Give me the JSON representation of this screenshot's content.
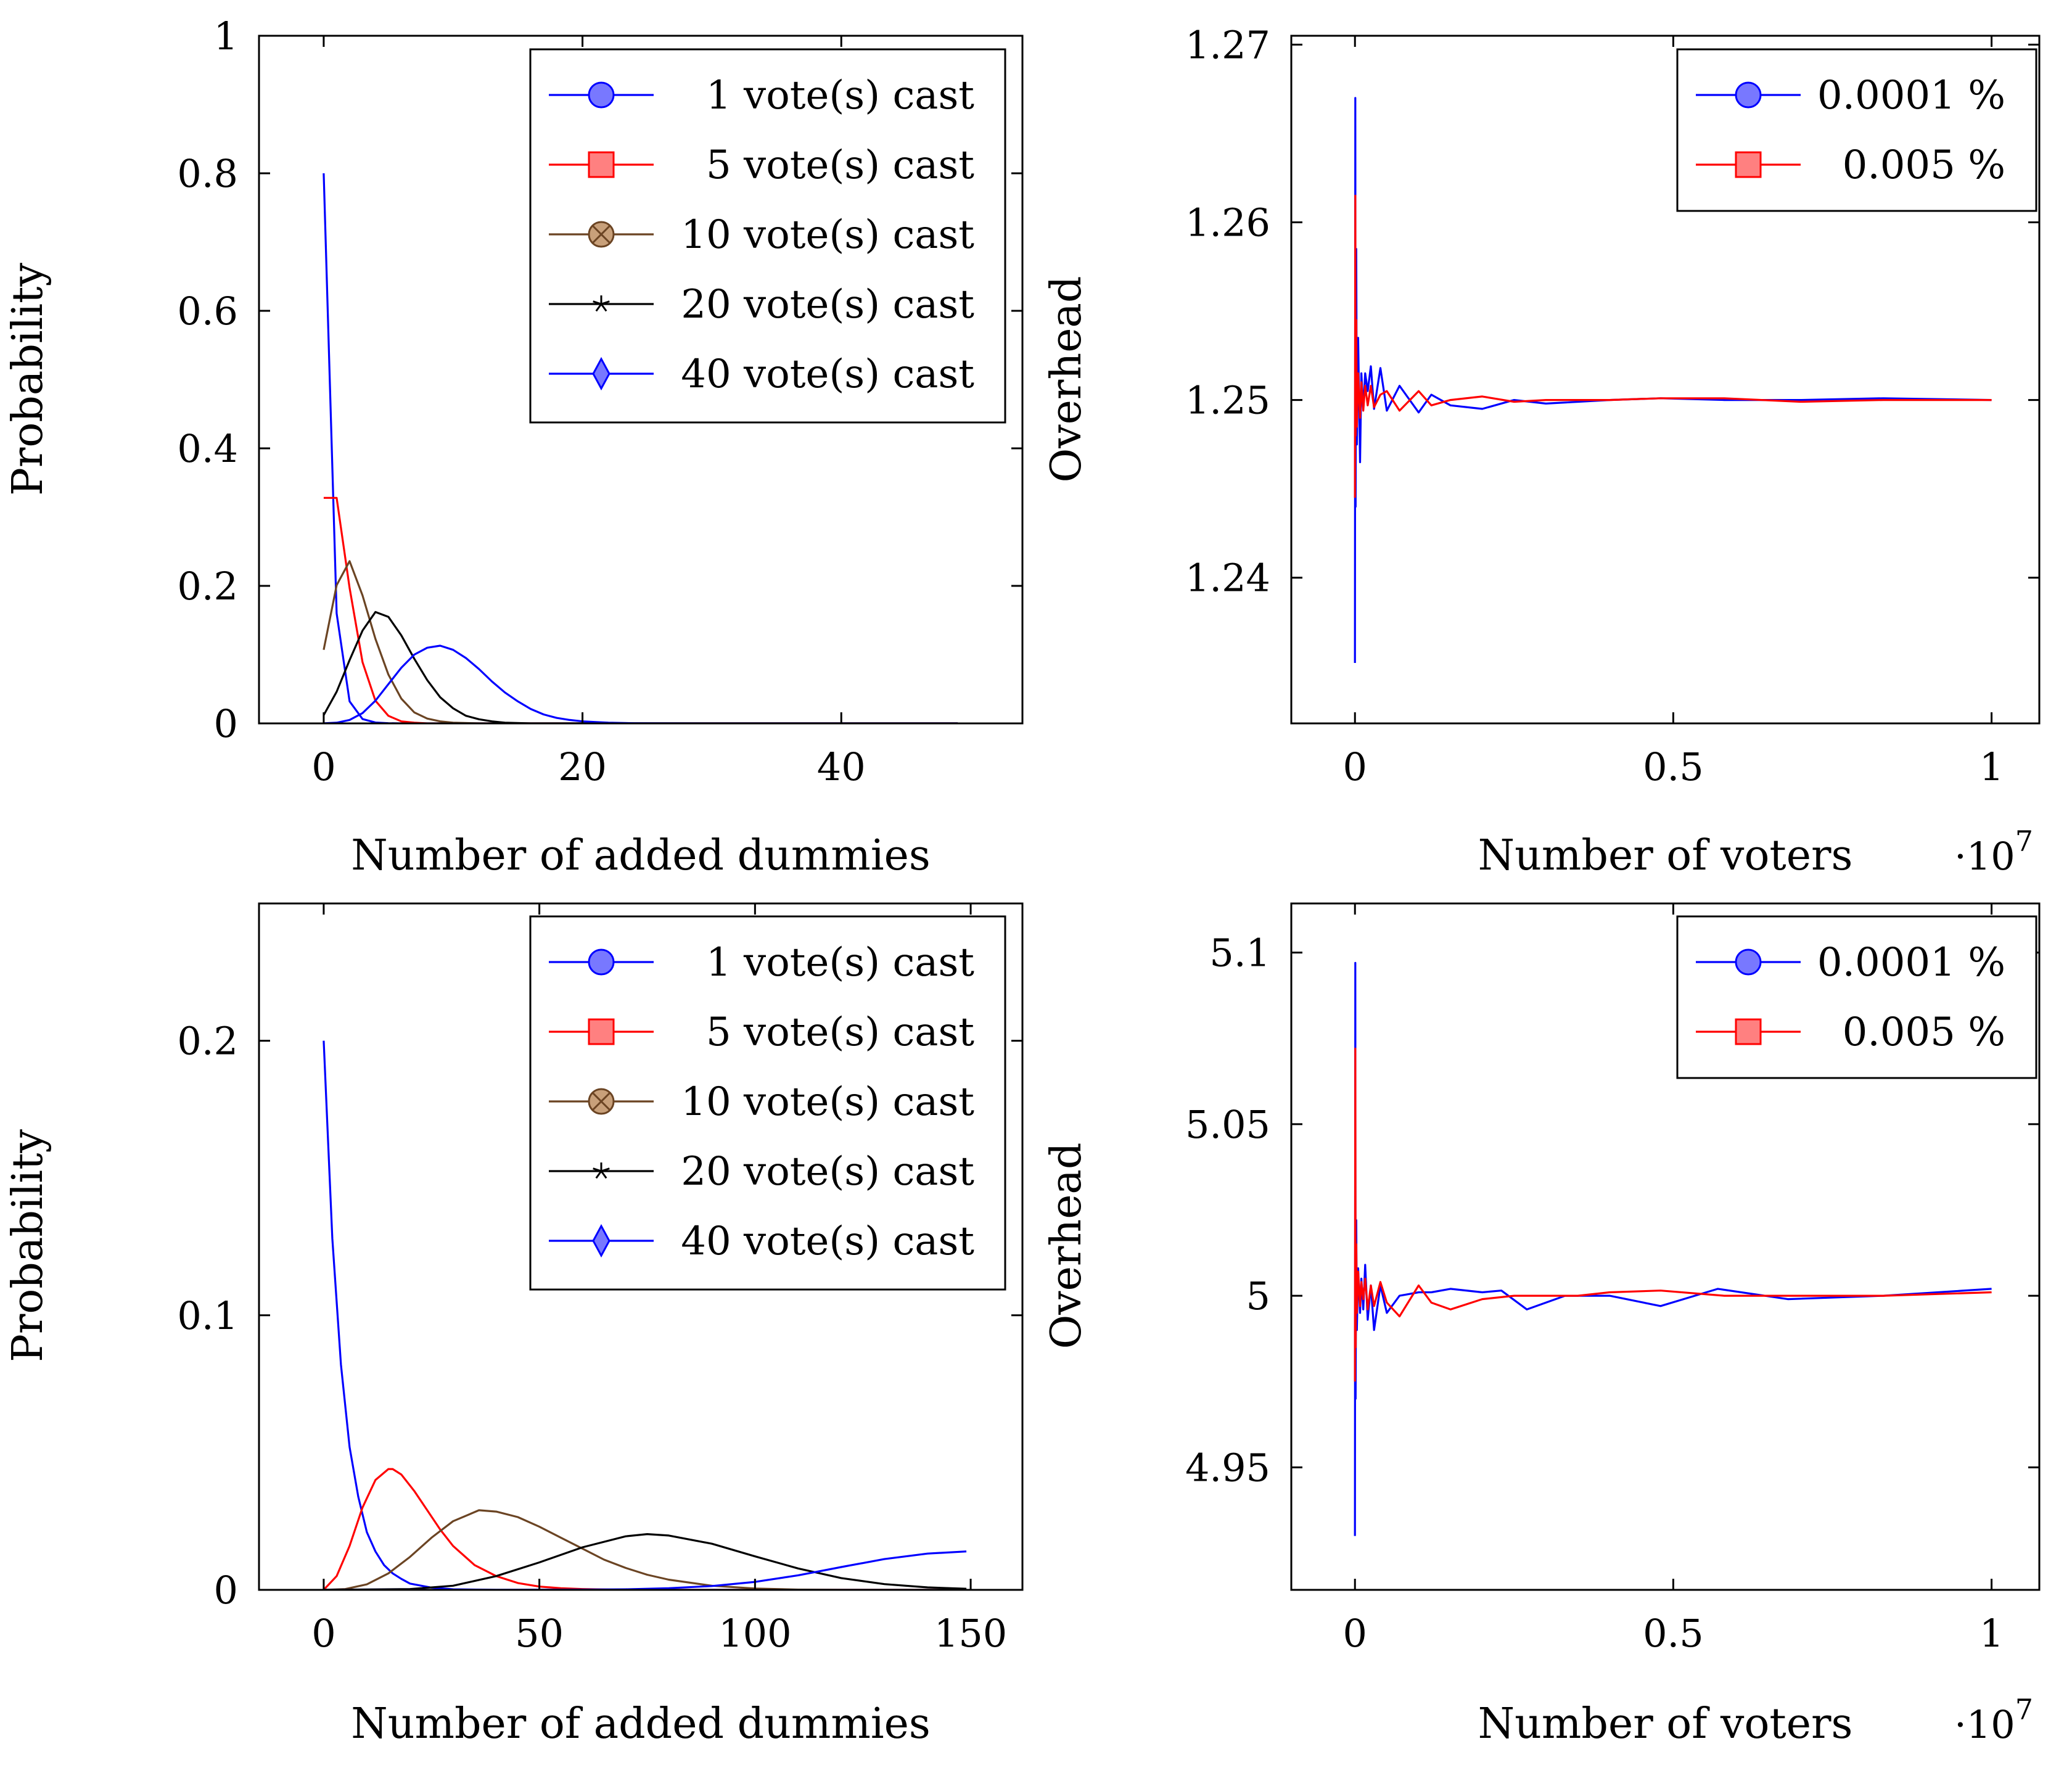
{
  "colors": {
    "blue": "#0000ff",
    "red": "#ff0000",
    "brown": "#6b4423",
    "black": "#000000",
    "blue_fill": "#7878ff",
    "red_fill": "#ff8080",
    "brown_fill": "#c8a07a"
  },
  "chart_data": [
    {
      "type": "line",
      "title": "",
      "xlabel": "Number of added dummies",
      "ylabel": "Probability",
      "xlim": [
        -5,
        54
      ],
      "ylim": [
        0,
        1
      ],
      "xticks": [
        0,
        20,
        40
      ],
      "xtick_labels": [
        "0",
        "20",
        "40"
      ],
      "yticks": [
        0,
        0.2,
        0.4,
        0.6,
        0.8,
        1
      ],
      "ytick_labels": [
        "0",
        "0.2",
        "0.4",
        "0.6",
        "0.8",
        "1"
      ],
      "grid": false,
      "legend_position": "top-right",
      "series": [
        {
          "name": "1 vote(s) cast",
          "color": "blue",
          "marker": "circle",
          "x": [
            0,
            1,
            2,
            3,
            4,
            5,
            6,
            7,
            8,
            10,
            15,
            20,
            30,
            40,
            49
          ],
          "y": [
            0.8,
            0.16,
            0.032,
            0.0064,
            0.0013,
            0.0003,
            0,
            0,
            0,
            0,
            0,
            0,
            0,
            0,
            0
          ]
        },
        {
          "name": "5 vote(s) cast",
          "color": "red",
          "marker": "square",
          "x": [
            0,
            1,
            2,
            3,
            4,
            5,
            6,
            7,
            8,
            10,
            15,
            20,
            30,
            40,
            49
          ],
          "y": [
            0.328,
            0.328,
            0.197,
            0.089,
            0.033,
            0.011,
            0.003,
            0.001,
            0,
            0,
            0,
            0,
            0,
            0,
            0
          ]
        },
        {
          "name": "10 vote(s) cast",
          "color": "brown",
          "marker": "circle-x",
          "x": [
            0,
            1,
            2,
            3,
            4,
            5,
            6,
            7,
            8,
            9,
            10,
            12,
            15,
            20,
            30,
            40,
            49
          ],
          "y": [
            0.107,
            0.201,
            0.236,
            0.186,
            0.123,
            0.071,
            0.036,
            0.016,
            0.007,
            0.003,
            0.001,
            0,
            0,
            0,
            0,
            0,
            0
          ]
        },
        {
          "name": "20 vote(s) cast",
          "color": "black",
          "marker": "star",
          "x": [
            0,
            1,
            2,
            3,
            4,
            5,
            6,
            7,
            8,
            9,
            10,
            11,
            12,
            13,
            14,
            16,
            18,
            20,
            30,
            40,
            49
          ],
          "y": [
            0.012,
            0.046,
            0.092,
            0.135,
            0.162,
            0.155,
            0.128,
            0.094,
            0.063,
            0.038,
            0.022,
            0.011,
            0.006,
            0.003,
            0.001,
            0,
            0,
            0,
            0,
            0,
            0
          ]
        },
        {
          "name": "40 vote(s) cast",
          "color": "blue",
          "marker": "diamond",
          "x": [
            0,
            1,
            2,
            3,
            4,
            5,
            6,
            7,
            8,
            9,
            10,
            11,
            12,
            13,
            14,
            15,
            16,
            17,
            18,
            19,
            20,
            22,
            24,
            26,
            30,
            40,
            49
          ],
          "y": [
            0.0001,
            0.001,
            0.005,
            0.015,
            0.033,
            0.057,
            0.081,
            0.1,
            0.11,
            0.113,
            0.107,
            0.095,
            0.079,
            0.061,
            0.045,
            0.032,
            0.021,
            0.013,
            0.008,
            0.005,
            0.003,
            0.001,
            0.0003,
            0.0001,
            0,
            0,
            0
          ]
        }
      ]
    },
    {
      "type": "line",
      "title": "",
      "xlabel": "Number of voters",
      "ylabel": "Overhead",
      "x_multiplier": "·10",
      "x_multiplier_exp": "7",
      "xlim": [
        -0.1,
        1.075
      ],
      "ylim": [
        1.2318,
        1.2705
      ],
      "xticks": [
        0,
        0.5,
        1
      ],
      "xtick_labels": [
        "0",
        "0.5",
        "1"
      ],
      "yticks": [
        1.24,
        1.25,
        1.26,
        1.27
      ],
      "ytick_labels": [
        "1.24",
        "1.25",
        "1.26",
        "1.27"
      ],
      "grid": false,
      "legend_position": "top-right",
      "series": [
        {
          "name": "0.0001 %",
          "color": "blue",
          "marker": "circle",
          "x": [
            0,
            0.0005,
            0.001,
            0.002,
            0.003,
            0.005,
            0.008,
            0.01,
            0.013,
            0.016,
            0.02,
            0.025,
            0.03,
            0.04,
            0.05,
            0.07,
            0.1,
            0.12,
            0.15,
            0.2,
            0.25,
            0.3,
            0.35,
            0.4,
            0.48,
            0.58,
            0.7,
            0.83,
            1.0
          ],
          "y": [
            1.2352,
            1.267,
            1.244,
            1.2585,
            1.2475,
            1.2535,
            1.2465,
            1.2515,
            1.2495,
            1.2515,
            1.2505,
            1.2519,
            1.2495,
            1.2518,
            1.2494,
            1.2508,
            1.2493,
            1.2503,
            1.2497,
            1.2495,
            1.25,
            1.2498,
            1.2499,
            1.25,
            1.2501,
            1.25,
            1.25,
            1.2501,
            1.25
          ]
        },
        {
          "name": "0.005 %",
          "color": "red",
          "marker": "square",
          "x": [
            0,
            0.0005,
            0.001,
            0.002,
            0.003,
            0.005,
            0.008,
            0.01,
            0.013,
            0.016,
            0.02,
            0.025,
            0.03,
            0.04,
            0.05,
            0.07,
            0.1,
            0.12,
            0.15,
            0.2,
            0.25,
            0.3,
            0.35,
            0.4,
            0.48,
            0.58,
            0.7,
            0.83,
            1.0
          ],
          "y": [
            1.2445,
            1.2615,
            1.248,
            1.2545,
            1.2485,
            1.2515,
            1.249,
            1.251,
            1.2494,
            1.2508,
            1.2497,
            1.2508,
            1.2496,
            1.2503,
            1.2505,
            1.2494,
            1.2505,
            1.2497,
            1.25,
            1.2502,
            1.2499,
            1.25,
            1.25,
            1.25,
            1.2501,
            1.2501,
            1.2499,
            1.25,
            1.25
          ]
        }
      ]
    },
    {
      "type": "line",
      "title": "",
      "xlabel": "Number of added dummies",
      "ylabel": "Probability",
      "xlim": [
        -15,
        162
      ],
      "ylim": [
        0,
        0.25
      ],
      "xticks": [
        0,
        50,
        100,
        150
      ],
      "xtick_labels": [
        "0",
        "50",
        "100",
        "150"
      ],
      "yticks": [
        0,
        0.1,
        0.2
      ],
      "ytick_labels": [
        "0",
        "0.1",
        "0.2"
      ],
      "grid": false,
      "legend_position": "top-right",
      "series": [
        {
          "name": "1 vote(s) cast",
          "color": "blue",
          "marker": "circle",
          "x": [
            0,
            2,
            4,
            6,
            8,
            10,
            12,
            14,
            16,
            18,
            20,
            25,
            30,
            40,
            50,
            60,
            80,
            100,
            120,
            149
          ],
          "y": [
            0.2,
            0.128,
            0.082,
            0.052,
            0.034,
            0.021,
            0.014,
            0.009,
            0.006,
            0.004,
            0.0023,
            0.0008,
            0.0002,
            0,
            0,
            0,
            0,
            0,
            0,
            0
          ]
        },
        {
          "name": "5 vote(s) cast",
          "color": "red",
          "marker": "square",
          "x": [
            0,
            3,
            6,
            9,
            12,
            15,
            16,
            18,
            21,
            24,
            27,
            30,
            35,
            40,
            45,
            50,
            55,
            60,
            70,
            80,
            100,
            149
          ],
          "y": [
            0,
            0.005,
            0.016,
            0.03,
            0.04,
            0.044,
            0.044,
            0.042,
            0.036,
            0.029,
            0.022,
            0.016,
            0.009,
            0.005,
            0.0025,
            0.0012,
            0.0006,
            0.0003,
            0,
            0,
            0,
            0
          ]
        },
        {
          "name": "10 vote(s) cast",
          "color": "brown",
          "marker": "circle-x",
          "x": [
            0,
            5,
            10,
            15,
            20,
            25,
            30,
            36,
            40,
            45,
            50,
            55,
            60,
            65,
            70,
            75,
            80,
            90,
            100,
            110,
            120,
            149
          ],
          "y": [
            0,
            0.0003,
            0.002,
            0.006,
            0.012,
            0.019,
            0.025,
            0.029,
            0.0285,
            0.0265,
            0.023,
            0.019,
            0.015,
            0.011,
            0.008,
            0.0055,
            0.0037,
            0.0015,
            0.0005,
            0.0001,
            0,
            0
          ]
        },
        {
          "name": "20 vote(s) cast",
          "color": "black",
          "marker": "star",
          "x": [
            0,
            20,
            30,
            40,
            50,
            60,
            70,
            75,
            80,
            90,
            100,
            110,
            120,
            130,
            140,
            149
          ],
          "y": [
            0,
            0.0003,
            0.0015,
            0.005,
            0.01,
            0.0155,
            0.0195,
            0.0203,
            0.0198,
            0.0168,
            0.0122,
            0.0078,
            0.0043,
            0.0021,
            0.0009,
            0.0004
          ]
        },
        {
          "name": "40 vote(s) cast",
          "color": "blue",
          "marker": "diamond",
          "x": [
            0,
            40,
            60,
            70,
            80,
            90,
            100,
            110,
            120,
            130,
            140,
            149
          ],
          "y": [
            0,
            0,
            0.0001,
            0.0002,
            0.0006,
            0.0014,
            0.0029,
            0.0053,
            0.0083,
            0.0112,
            0.0132,
            0.014
          ]
        }
      ]
    },
    {
      "type": "line",
      "title": "",
      "xlabel": "Number of voters",
      "ylabel": "Overhead",
      "x_multiplier": "·10",
      "x_multiplier_exp": "7",
      "xlim": [
        -0.1,
        1.075
      ],
      "ylim": [
        4.9143,
        5.1143
      ],
      "xticks": [
        0,
        0.5,
        1
      ],
      "xtick_labels": [
        "0",
        "0.5",
        "1"
      ],
      "yticks": [
        4.95,
        5,
        5.05,
        5.1
      ],
      "ytick_labels": [
        "4.95",
        "5",
        "5.05",
        "5.1"
      ],
      "grid": false,
      "legend_position": "top-right",
      "series": [
        {
          "name": "0.0001 %",
          "color": "blue",
          "marker": "circle",
          "x": [
            0,
            0.0005,
            0.001,
            0.002,
            0.003,
            0.005,
            0.008,
            0.01,
            0.013,
            0.016,
            0.02,
            0.025,
            0.03,
            0.04,
            0.05,
            0.07,
            0.1,
            0.12,
            0.15,
            0.2,
            0.23,
            0.27,
            0.33,
            0.4,
            0.48,
            0.57,
            0.68,
            0.83,
            1.0
          ],
          "y": [
            4.93,
            5.097,
            4.97,
            5.022,
            4.99,
            5.008,
            4.995,
            5.005,
            4.996,
            5.009,
            4.993,
            5.003,
            4.99,
            5.003,
            4.995,
            5.0,
            5.001,
            5.001,
            5.002,
            5.001,
            5.0015,
            4.996,
            5.0,
            5.0,
            4.997,
            5.002,
            4.999,
            5.0,
            5.002
          ]
        },
        {
          "name": "0.005 %",
          "color": "red",
          "marker": "square",
          "x": [
            0,
            0.0005,
            0.001,
            0.002,
            0.003,
            0.005,
            0.008,
            0.01,
            0.013,
            0.016,
            0.02,
            0.025,
            0.03,
            0.04,
            0.05,
            0.07,
            0.1,
            0.12,
            0.15,
            0.2,
            0.25,
            0.3,
            0.35,
            0.4,
            0.48,
            0.58,
            0.7,
            0.83,
            1.0
          ],
          "y": [
            4.975,
            5.072,
            4.985,
            5.015,
            4.995,
            5.007,
            4.997,
            5.004,
            4.999,
            5.005,
            4.996,
            5.003,
            4.997,
            5.004,
            4.998,
            4.994,
            5.003,
            4.998,
            4.996,
            4.999,
            5.0,
            5.0,
            5.0,
            5.001,
            5.0015,
            5.0,
            5.0,
            5.0,
            5.001
          ]
        }
      ]
    }
  ]
}
